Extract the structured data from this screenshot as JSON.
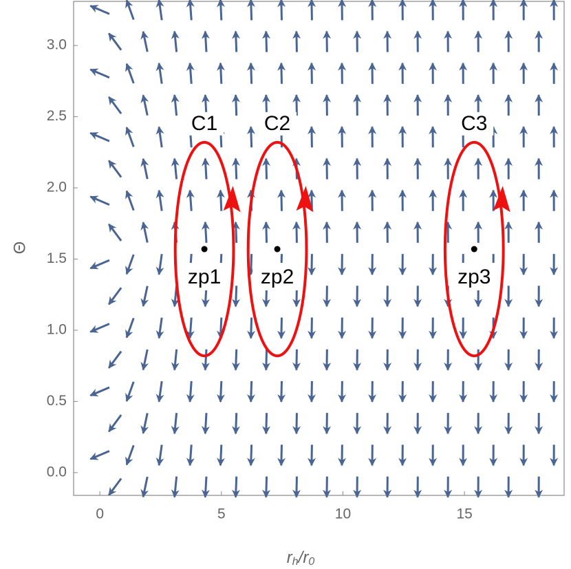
{
  "chart_data": {
    "type": "vector_field",
    "x_label": [
      "r",
      "h",
      "/r",
      "0"
    ],
    "y_label": "Θ",
    "xlim": [
      -1.08,
      19.1
    ],
    "ylim": [
      -0.16,
      3.31
    ],
    "xticks": [
      0,
      5,
      10,
      15
    ],
    "yticks": [
      {
        "value": 0,
        "label": "0.0"
      },
      {
        "value": 0.5,
        "label": "0.5"
      },
      {
        "value": 1,
        "label": "1.0"
      },
      {
        "value": 1.5,
        "label": "1.5"
      },
      {
        "value": 2,
        "label": "2.0"
      },
      {
        "value": 2.5,
        "label": "2.5"
      },
      {
        "value": 3,
        "label": "3.0"
      }
    ],
    "arrow_color": "#4a6494",
    "contour_color": "#ee1111",
    "contours": [
      {
        "name": "C1",
        "cx": 4.3,
        "cy": 1.57,
        "rx": 1.2,
        "ry": 0.75
      },
      {
        "name": "C2",
        "cx": 7.3,
        "cy": 1.57,
        "rx": 1.2,
        "ry": 0.75
      },
      {
        "name": "C3",
        "cx": 15.4,
        "cy": 1.57,
        "rx": 1.2,
        "ry": 0.75
      }
    ],
    "zero_points": [
      {
        "name": "zp1",
        "x": 4.3,
        "y": 1.57
      },
      {
        "name": "zp2",
        "x": 7.3,
        "y": 1.57
      },
      {
        "name": "zp3",
        "x": 15.4,
        "y": 1.57
      }
    ]
  }
}
